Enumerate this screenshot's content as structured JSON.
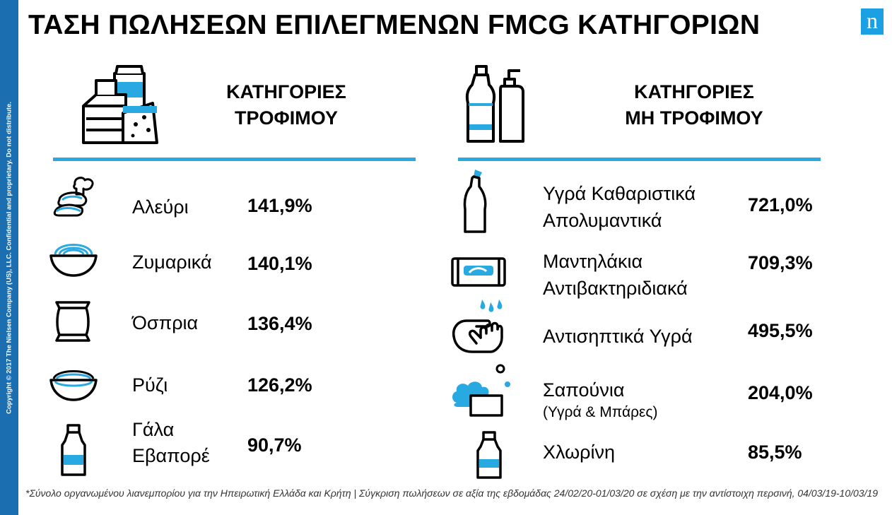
{
  "sidebar_text": "Copyright © 2017 The Nielsen Company (US), LLC. Confidential and proprietary. Do not distribute.",
  "title": "ΤΑΣΗ ΠΩΛΗΣΕΩΝ ΕΠΙΛΕΓΜΕΝΩΝ FMCG ΚΑΤΗΓΟΡΙΩΝ",
  "logo": "n",
  "food": {
    "heading_line1": "ΚΑΤΗΓΟΡΙΕΣ",
    "heading_line2": "ΤΡΟΦΙΜΟΥ",
    "items": [
      {
        "label": "Αλεύρι",
        "value": "141,9%",
        "icon": "flour-bread-icon"
      },
      {
        "label": "Ζυμαρικά",
        "value": "140,1%",
        "icon": "pasta-bowl-icon"
      },
      {
        "label": "Όσπρια",
        "value": "136,4%",
        "icon": "legumes-bag-icon"
      },
      {
        "label": "Ρύζι",
        "value": "126,2%",
        "icon": "rice-bowl-icon"
      },
      {
        "label_line1": "Γάλα",
        "label_line2": "Εβαπορέ",
        "value": "90,7%",
        "icon": "milk-bottle-icon"
      }
    ]
  },
  "nonfood": {
    "heading_line1": "ΚΑΤΗΓΟΡΙΕΣ",
    "heading_line2": "ΜΗ ΤΡΟΦΙΜΟΥ",
    "items": [
      {
        "label_line1": "Υγρά Καθαριστικά",
        "label_line2": "Απολυμαντικά",
        "value": "721,0%",
        "icon": "cleaner-bottle-icon"
      },
      {
        "label_line1": "Μαντηλάκια",
        "label_line2": "Αντιβακτηριδιακά",
        "value": "709,3%",
        "icon": "wipes-pack-icon"
      },
      {
        "label": "Αντισηπτικά Υγρά",
        "value": "495,5%",
        "icon": "hand-wash-icon"
      },
      {
        "label_line1": "Σαπούνια",
        "label_line2": "(Υγρά & Μπάρες)",
        "value": "204,0%",
        "icon": "soap-bar-icon"
      },
      {
        "label": "Χλωρίνη",
        "value": "85,5%",
        "icon": "bleach-bottle-icon"
      }
    ]
  },
  "footnote": "*Σύνολο οργανωμένου λιανεμπορίου για την Ηπειρωτική Ελλάδα και Κρήτη | Σύγκριση πωλήσεων σε αξία της εβδομάδας 24/02/20-01/03/20 σε σχέση με την αντίστοιχη περσινή, 04/03/19-10/03/19",
  "colors": {
    "accent": "#29a9e1",
    "sidebar": "#1b6fb1",
    "logo": "#1aa0e3"
  }
}
